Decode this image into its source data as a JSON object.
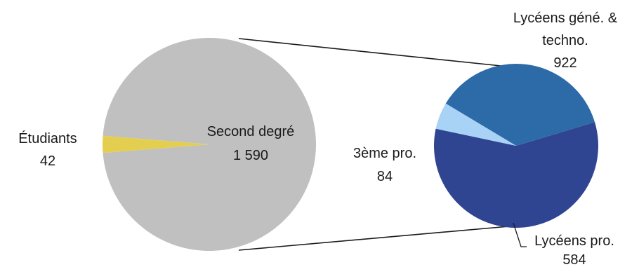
{
  "chart_data": {
    "type": "bar-of-pie",
    "main_pie": {
      "slices": [
        {
          "label": "Second degré",
          "value_text": "1 590",
          "value": 1590,
          "color": "#c0c0c0"
        },
        {
          "label": "Étudiants",
          "value_text": "42",
          "value": 42,
          "color": "#e4ce50"
        }
      ]
    },
    "secondary_pie": {
      "slices": [
        {
          "label": "Lycéens géné. & techno.",
          "label_lines": [
            "Lycéens géné. &",
            "techno."
          ],
          "value_text": "922",
          "value": 922,
          "color": "#2f4591"
        },
        {
          "label": "Lycéens pro.",
          "value_text": "584",
          "value": 584,
          "color": "#2d6aa8"
        },
        {
          "label": "3ème pro.",
          "value_text": "84",
          "value": 84,
          "color": "#a9d2f7"
        }
      ]
    },
    "connector_color": "#1a1a1a"
  }
}
